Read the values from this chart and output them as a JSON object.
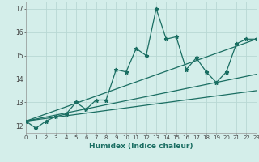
{
  "xlabel": "Humidex (Indice chaleur)",
  "bg_color": "#d4eeea",
  "grid_color": "#b8d8d4",
  "line_color": "#1a6e62",
  "xmin": 0,
  "xmax": 23,
  "ymin": 11.7,
  "ymax": 17.3,
  "yticks": [
    12,
    13,
    14,
    15,
    16,
    17
  ],
  "series1_x": [
    0,
    1,
    2,
    3,
    4,
    5,
    6,
    7,
    8,
    9,
    10,
    11,
    12,
    13,
    14,
    15,
    16,
    17,
    18,
    19,
    20,
    21,
    22,
    23
  ],
  "series1_y": [
    12.2,
    11.9,
    12.2,
    12.4,
    12.5,
    13.0,
    12.7,
    13.1,
    13.1,
    14.4,
    14.3,
    15.3,
    15.0,
    17.0,
    15.7,
    15.8,
    14.4,
    14.9,
    14.3,
    13.85,
    14.3,
    15.5,
    15.7,
    15.7
  ],
  "line2_x": [
    0,
    23
  ],
  "line2_y": [
    12.2,
    13.5
  ],
  "line3_x": [
    0,
    23
  ],
  "line3_y": [
    12.2,
    14.2
  ],
  "line4_x": [
    0,
    23
  ],
  "line4_y": [
    12.2,
    15.7
  ]
}
